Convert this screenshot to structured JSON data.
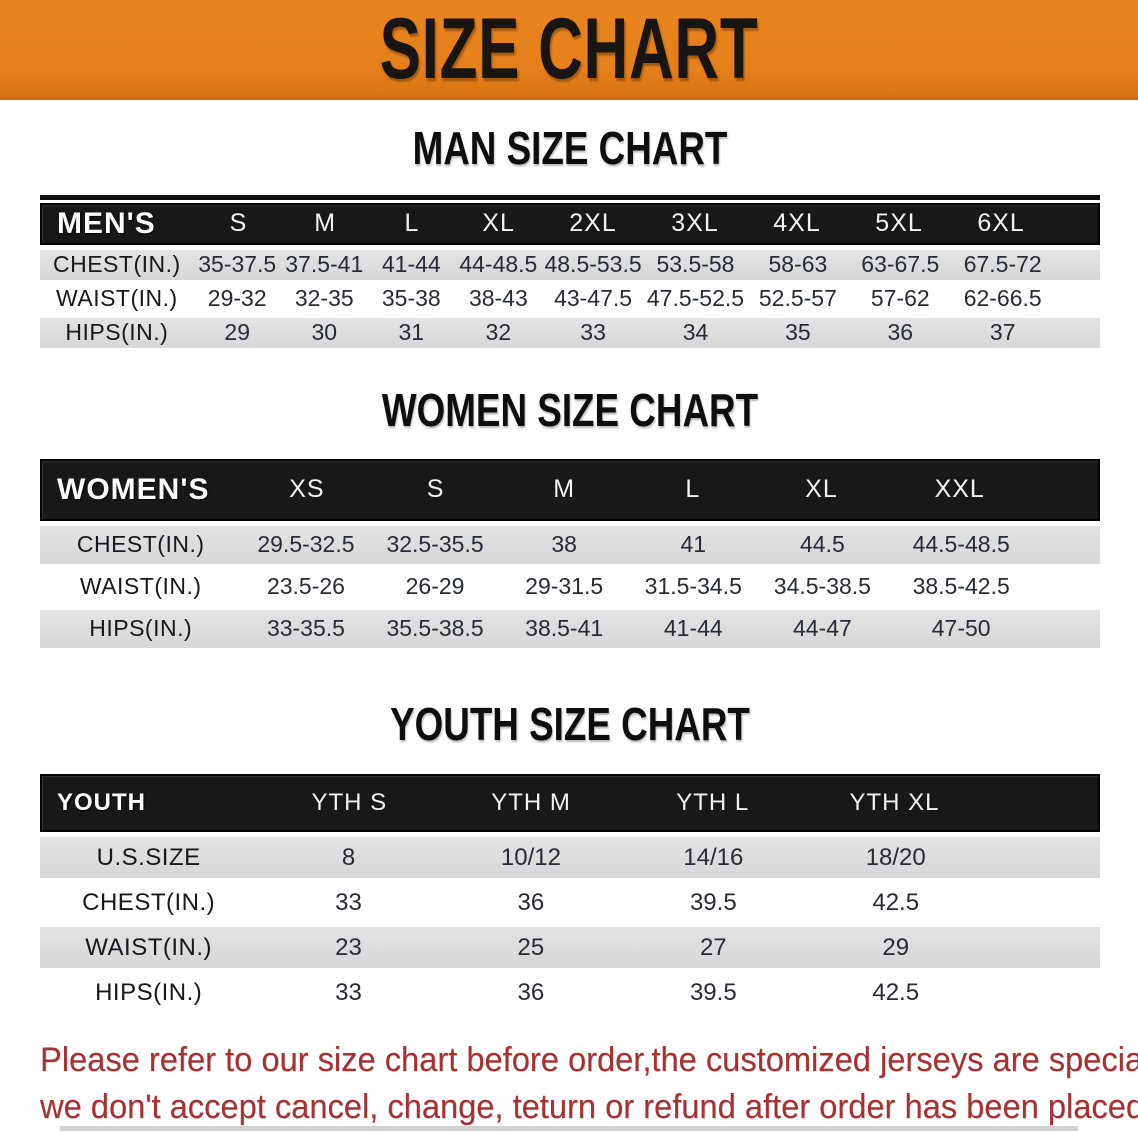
{
  "banner": {
    "title": "SIZE CHART",
    "bg_color": "#e5801b",
    "text_color": "#181512"
  },
  "sections": [
    {
      "heading": "MAN SIZE CHART",
      "table": {
        "title": "MEN'S",
        "columns": [
          "S",
          "M",
          "L",
          "XL",
          "2XL",
          "3XL",
          "4XL",
          "5XL",
          "6XL"
        ],
        "rows": [
          {
            "label": "CHEST(IN.)",
            "values": [
              "35-37.5",
              "37.5-41",
              "41-44",
              "44-48.5",
              "48.5-53.5",
              "53.5-58",
              "58-63",
              "63-67.5",
              "67.5-72"
            ]
          },
          {
            "label": "WAIST(IN.)",
            "values": [
              "29-32",
              "32-35",
              "35-38",
              "38-43",
              "43-47.5",
              "47.5-52.5",
              "52.5-57",
              "57-62",
              "62-66.5"
            ]
          },
          {
            "label": "HIPS(IN.)",
            "values": [
              "29",
              "30",
              "31",
              "32",
              "33",
              "34",
              "35",
              "36",
              "37"
            ]
          }
        ]
      }
    },
    {
      "heading": "WOMEN SIZE CHART",
      "table": {
        "title": "WOMEN'S",
        "columns": [
          "XS",
          "S",
          "M",
          "L",
          "XL",
          "XXL"
        ],
        "rows": [
          {
            "label": "CHEST(IN.)",
            "values": [
              "29.5-32.5",
              "32.5-35.5",
              "38",
              "41",
              "44.5",
              "44.5-48.5"
            ]
          },
          {
            "label": "WAIST(IN.)",
            "values": [
              "23.5-26",
              "26-29",
              "29-31.5",
              "31.5-34.5",
              "34.5-38.5",
              "38.5-42.5"
            ]
          },
          {
            "label": "HIPS(IN.)",
            "values": [
              "33-35.5",
              "35.5-38.5",
              "38.5-41",
              "41-44",
              "44-47",
              "47-50"
            ]
          }
        ]
      }
    },
    {
      "heading": "YOUTH SIZE CHART",
      "table": {
        "title": "YOUTH",
        "columns": [
          "YTH S",
          "YTH M",
          "YTH L",
          "YTH XL"
        ],
        "rows": [
          {
            "label": "U.S.SIZE",
            "values": [
              "8",
              "10/12",
              "14/16",
              "18/20"
            ]
          },
          {
            "label": "CHEST(IN.)",
            "values": [
              "33",
              "36",
              "39.5",
              "42.5"
            ]
          },
          {
            "label": "WAIST(IN.)",
            "values": [
              "23",
              "25",
              "27",
              "29"
            ]
          },
          {
            "label": "HIPS(IN.)",
            "values": [
              "33",
              "36",
              "39.5",
              "42.5"
            ]
          }
        ]
      }
    }
  ],
  "disclaimer": {
    "line1": "Please refer to our size chart before order,the customized jerseys are special products,",
    "line2": "we don't accept cancel, change, teturn or refund after order has been placed!",
    "color": "#a53131"
  },
  "row_colors": {
    "gray": "#d9d9d9",
    "white": "#ffffff",
    "header": "#181818"
  }
}
